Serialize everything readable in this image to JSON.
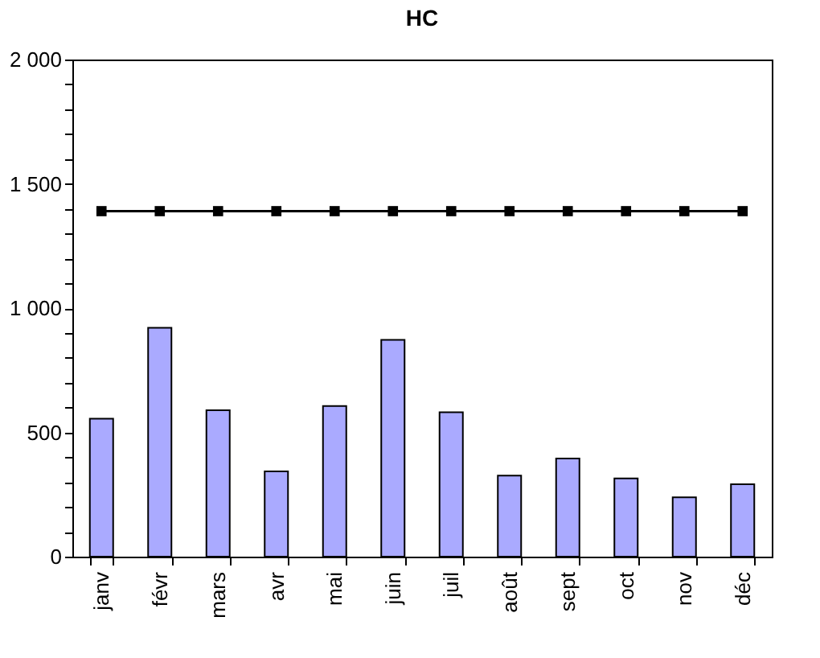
{
  "chart_data": {
    "type": "bar",
    "title": "HC",
    "categories": [
      "janv",
      "févr",
      "mars",
      "avr",
      "mai",
      "juin",
      "juil",
      "août",
      "sept",
      "oct",
      "nov",
      "déc"
    ],
    "series": [
      {
        "color": "#aaaaff",
        "values": [
          555,
          921,
          589,
          343,
          606,
          872,
          581,
          326,
          395,
          315,
          239,
          291
        ]
      },
      {
        "type": "line",
        "color": "#000000",
        "marker": "square",
        "values": [
          1390,
          1390,
          1390,
          1390,
          1390,
          1390,
          1390,
          1390,
          1390,
          1390,
          1390,
          1390
        ]
      }
    ],
    "ylim": [
      0,
      2000
    ],
    "yticks": [
      {
        "value": 0,
        "label": "0"
      },
      {
        "value": 100,
        "label": null
      },
      {
        "value": 200,
        "label": null
      },
      {
        "value": 300,
        "label": null
      },
      {
        "value": 400,
        "label": null
      },
      {
        "value": 500,
        "label": "500"
      },
      {
        "value": 600,
        "label": null
      },
      {
        "value": 700,
        "label": null
      },
      {
        "value": 800,
        "label": null
      },
      {
        "value": 900,
        "label": null
      },
      {
        "value": 1000,
        "label": "1 000"
      },
      {
        "value": 1100,
        "label": null
      },
      {
        "value": 1200,
        "label": null
      },
      {
        "value": 1300,
        "label": null
      },
      {
        "value": 1400,
        "label": null
      },
      {
        "value": 1500,
        "label": "1 500"
      },
      {
        "value": 1600,
        "label": null
      },
      {
        "value": 1700,
        "label": null
      },
      {
        "value": 1800,
        "label": null
      },
      {
        "value": 1900,
        "label": null
      },
      {
        "value": 2000,
        "label": "2 000"
      }
    ],
    "grid": false
  }
}
